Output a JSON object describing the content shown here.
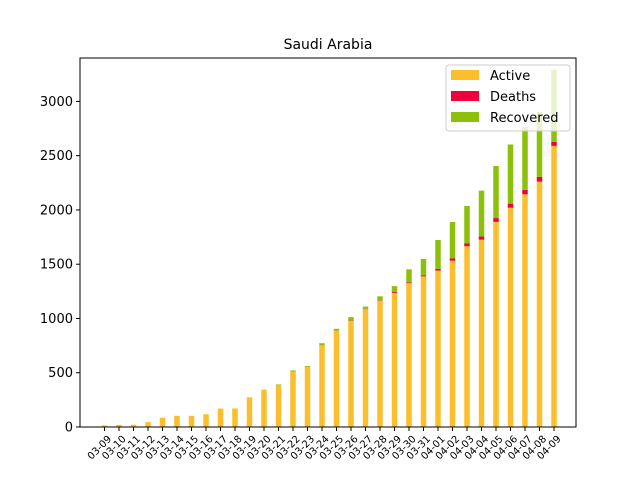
{
  "chart_data": {
    "type": "bar",
    "stacked": true,
    "title": "Saudi Arabia",
    "xlabel": "",
    "ylabel": "",
    "ylim": [
      0,
      3400
    ],
    "yticks": [
      0,
      500,
      1000,
      1500,
      2000,
      2500,
      3000
    ],
    "grid": false,
    "legend_position": "top-right",
    "categories": [
      "03-09",
      "03-10",
      "03-11",
      "03-12",
      "03-13",
      "03-14",
      "03-15",
      "03-16",
      "03-17",
      "03-18",
      "03-19",
      "03-20",
      "03-21",
      "03-22",
      "03-23",
      "03-24",
      "03-25",
      "03-26",
      "03-27",
      "03-28",
      "03-29",
      "03-30",
      "03-31",
      "04-01",
      "04-02",
      "04-03",
      "04-04",
      "04-05",
      "04-06",
      "04-07",
      "04-08",
      "04-09"
    ],
    "series": [
      {
        "name": "Active",
        "color": "#fbbf2d",
        "values": [
          15,
          20,
          21,
          45,
          86,
          103,
          103,
          118,
          170,
          171,
          274,
          344,
          384,
          510,
          554,
          754,
          887,
          977,
          1086,
          1163,
          1236,
          1325,
          1388,
          1441,
          1532,
          1666,
          1726,
          1890,
          2020,
          2144,
          2261,
          2590
        ]
      },
      {
        "name": "Deaths",
        "color": "#f0003c",
        "values": [
          0,
          0,
          0,
          0,
          0,
          0,
          0,
          0,
          0,
          0,
          0,
          0,
          0,
          0,
          0,
          1,
          1,
          3,
          3,
          4,
          8,
          8,
          10,
          16,
          21,
          25,
          29,
          35,
          38,
          41,
          44,
          38
        ]
      },
      {
        "name": "Recovered",
        "color": "#8dc00a",
        "values": [
          0,
          0,
          0,
          0,
          0,
          0,
          0,
          0,
          0,
          0,
          0,
          0,
          8,
          11,
          8,
          17,
          17,
          32,
          20,
          37,
          54,
          120,
          150,
          266,
          336,
          346,
          423,
          480,
          545,
          580,
          598,
          665
        ]
      }
    ]
  }
}
